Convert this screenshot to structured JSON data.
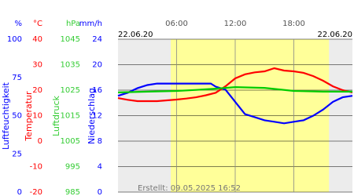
{
  "chart_data": {
    "type": "line",
    "x_start_label": "22.06.20",
    "x_end_label": "22.06.20",
    "footer": "Erstellt: 09.05.2025 16:52",
    "xlim": [
      0,
      24
    ],
    "xticks": [
      {
        "value": 6,
        "label": "06:00"
      },
      {
        "value": 12,
        "label": "12:00"
      },
      {
        "value": 18,
        "label": "18:00"
      }
    ],
    "daylight": [
      5.4,
      21.6
    ],
    "axes": [
      {
        "unit": "%",
        "title": "Luftfeuchtigkeit",
        "color": "#0000ff",
        "ylim": [
          0,
          100
        ],
        "yticks": [
          0,
          25,
          50,
          75,
          100
        ]
      },
      {
        "unit": "°C",
        "title": "Temperatur",
        "color": "#ff0000",
        "ylim": [
          -20,
          40
        ],
        "yticks": [
          -20,
          -10,
          0,
          10,
          20,
          30,
          40
        ]
      },
      {
        "unit": "hPa",
        "title": "Luftdruck",
        "color": "#33cc33",
        "ylim": [
          985,
          1045
        ],
        "yticks": [
          985,
          995,
          1005,
          1015,
          1025,
          1035,
          1045
        ]
      },
      {
        "unit": "mm/h",
        "title": "Niederschlag",
        "color": "#0000ff",
        "ylim": [
          0,
          24
        ],
        "yticks": [
          0,
          4,
          8,
          12,
          16,
          20,
          24
        ]
      }
    ],
    "grid_axis": 3,
    "series": [
      {
        "name": "Luftfeuchtigkeit",
        "axis": 0,
        "color": "#0000ff",
        "x": [
          0,
          1,
          2,
          3,
          4,
          5,
          6,
          7,
          8,
          9,
          9.5,
          10,
          11,
          12,
          13,
          14,
          15,
          16,
          17,
          18,
          19,
          20,
          21,
          22,
          23,
          24
        ],
        "values": [
          63,
          65,
          68,
          70,
          71,
          71,
          71,
          71,
          71,
          71,
          71,
          69,
          67,
          59,
          51,
          49,
          47,
          46,
          45,
          46,
          47,
          50,
          54,
          59,
          62,
          63
        ]
      },
      {
        "name": "Temperatur",
        "axis": 1,
        "color": "#ff0000",
        "x": [
          0,
          1,
          2,
          3,
          4,
          5,
          6,
          7,
          8,
          9,
          10,
          11,
          12,
          13,
          14,
          15,
          16,
          17,
          18,
          19,
          20,
          21,
          22,
          23,
          24
        ],
        "values": [
          16.9,
          16.2,
          15.7,
          15.7,
          15.7,
          16,
          16.3,
          16.7,
          17.2,
          18,
          19,
          21.5,
          24.6,
          26.2,
          27,
          27.4,
          28.6,
          27.7,
          27.4,
          26.8,
          25.5,
          23.7,
          21.5,
          20,
          19.1
        ]
      },
      {
        "name": "Luftdruck",
        "axis": 2,
        "color": "#00cc00",
        "x": [
          0,
          3,
          6,
          8,
          10,
          12,
          15,
          18,
          21,
          24
        ],
        "values": [
          1024.1,
          1024.4,
          1024.7,
          1025.1,
          1025.6,
          1026.2,
          1025.9,
          1024.7,
          1024.4,
          1024.4
        ]
      }
    ]
  }
}
